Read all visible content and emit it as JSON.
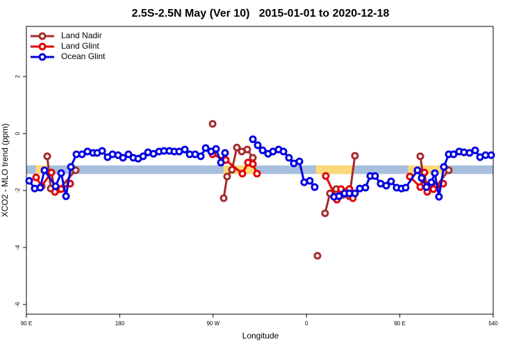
{
  "chart_data": {
    "type": "line",
    "title": "2.5S-2.5N May (Ver 10)   2015-01-01 to 2020-12-18",
    "x_label": "Longitude",
    "y_label": "XCO2 - MLO trend (ppm)",
    "xlim": [
      90,
      540
    ],
    "ylim": [
      -6.34,
      3.76
    ],
    "xticks": [
      {
        "value": 90,
        "label": "90 E"
      },
      180,
      {
        "value": 270,
        "label": "90 W"
      },
      {
        "value": 360,
        "label": "0"
      },
      {
        "value": 450,
        "label": "90 E"
      },
      540
    ],
    "yticks": [
      -6,
      -4,
      -2,
      0,
      2
    ],
    "legend": "top-left",
    "reference_band": {
      "ylim": [
        -1.42,
        -1.12
      ],
      "color": "#a7bedd"
    },
    "highlight_ranges": {
      "color": "#fbd878",
      "ranges": [
        [
          99,
          112
        ],
        [
          280,
          311
        ],
        [
          369,
          406
        ],
        [
          458,
          493
        ]
      ]
    },
    "series": [
      {
        "name": "Land Nadir",
        "color": "#a52a2a",
        "x": [
          110.1,
          113.4,
          121.5,
          137.5,
          null,
          269.5,
          null,
          280.2,
          283.5,
          288.2,
          292.9,
          297.6,
          302.9,
          308.3,
          null,
          370.6,
          null,
          377.9,
          382.6,
          388.6,
          395.3,
          401.4,
          406.7,
          null,
          469.7,
          473.7,
          478.4,
          485.1,
          497.1
        ],
        "values": [
          -0.8,
          -1.93,
          -1.95,
          -1.29,
          null,
          0.34,
          null,
          -2.27,
          -1.51,
          -1.27,
          -0.49,
          -0.63,
          -0.56,
          -0.85,
          null,
          -4.29,
          null,
          -2.8,
          -2.1,
          -1.95,
          -2.15,
          -2.2,
          -0.78,
          null,
          -0.8,
          -1.78,
          -1.88,
          -1.85,
          -1.29
        ]
      },
      {
        "name": "Land Glint",
        "color": "#e00000",
        "x": [
          99.4,
          104.7,
          114.1,
          117.5,
          123.5,
          132.2,
          null,
          269.5,
          282.2,
          298.2,
          303.6,
          308.3,
          312.3,
          null,
          378.6,
          389.3,
          393.3,
          401.4,
          404.7,
          null,
          459.6,
          469.7,
          473.7,
          476.4,
          482.4,
          491.8
        ],
        "values": [
          -1.54,
          -1.85,
          -1.37,
          -2.05,
          -1.95,
          -1.76,
          null,
          -0.73,
          -0.93,
          -1.41,
          -1.02,
          -1.07,
          -1.41,
          null,
          -1.49,
          -2.32,
          -1.95,
          -1.95,
          -2.27,
          null,
          -1.51,
          -1.88,
          -1.37,
          -2.05,
          -1.95,
          -1.76
        ]
      },
      {
        "name": "Ocean Glint",
        "color": "#0000e0",
        "x": [
          92.7,
          98.0,
          103.4,
          107.4,
          118.1,
          123.5,
          128.2,
          132.9,
          138.2,
          143.6,
          148.9,
          154.3,
          158.3,
          163.0,
          168.3,
          173.0,
          178.4,
          183.1,
          188.4,
          193.1,
          197.8,
          202.5,
          207.2,
          212.5,
          217.9,
          222.6,
          227.9,
          232.6,
          237.3,
          242.7,
          247.4,
          252.7,
          258.1,
          262.8,
          268.1,
          272.8,
          277.5,
          281.5,
          null,
          308.3,
          313.0,
          317.7,
          323.0,
          327.7,
          333.1,
          337.8,
          343.1,
          347.8,
          353.2,
          357.8,
          363.2,
          367.9,
          null,
          386.6,
          391.3,
          396.7,
          401.4,
          406.7,
          411.4,
          416.8,
          421.5,
          426.1,
          431.5,
          436.9,
          441.5,
          446.9,
          451.6,
          455.6,
          467.0,
          471.0,
          475.7,
          480.4,
          483.7,
          487.7,
          492.4,
          497.1,
          501.8,
          507.2,
          511.8,
          517.2,
          522.6,
          527.3,
          532.6,
          538.0
        ],
        "values": [
          -1.66,
          -1.93,
          -1.9,
          -1.29,
          -1.85,
          -1.39,
          -2.2,
          -1.17,
          -0.73,
          -0.73,
          -0.63,
          -0.68,
          -0.68,
          -0.61,
          -0.83,
          -0.73,
          -0.76,
          -0.85,
          -0.73,
          -0.85,
          -0.88,
          -0.8,
          -0.66,
          -0.71,
          -0.63,
          -0.61,
          -0.61,
          -0.63,
          -0.63,
          -0.56,
          -0.73,
          -0.73,
          -0.8,
          -0.51,
          -0.63,
          -0.54,
          -1.02,
          -0.68,
          null,
          -0.2,
          -0.41,
          -0.59,
          -0.71,
          -0.63,
          -0.56,
          -0.63,
          -0.85,
          -1.05,
          -0.98,
          -1.71,
          -1.66,
          -1.88,
          null,
          -2.22,
          -2.2,
          -2.1,
          -2.1,
          -2.1,
          -1.93,
          -1.9,
          -1.49,
          -1.49,
          -1.76,
          -1.83,
          -1.68,
          -1.9,
          -1.93,
          -1.9,
          -1.29,
          -1.56,
          -1.88,
          -1.71,
          -1.39,
          -2.22,
          -1.17,
          -0.73,
          -0.73,
          -0.63,
          -0.66,
          -0.68,
          -0.59,
          -0.83,
          -0.76,
          -0.76
        ]
      }
    ]
  }
}
